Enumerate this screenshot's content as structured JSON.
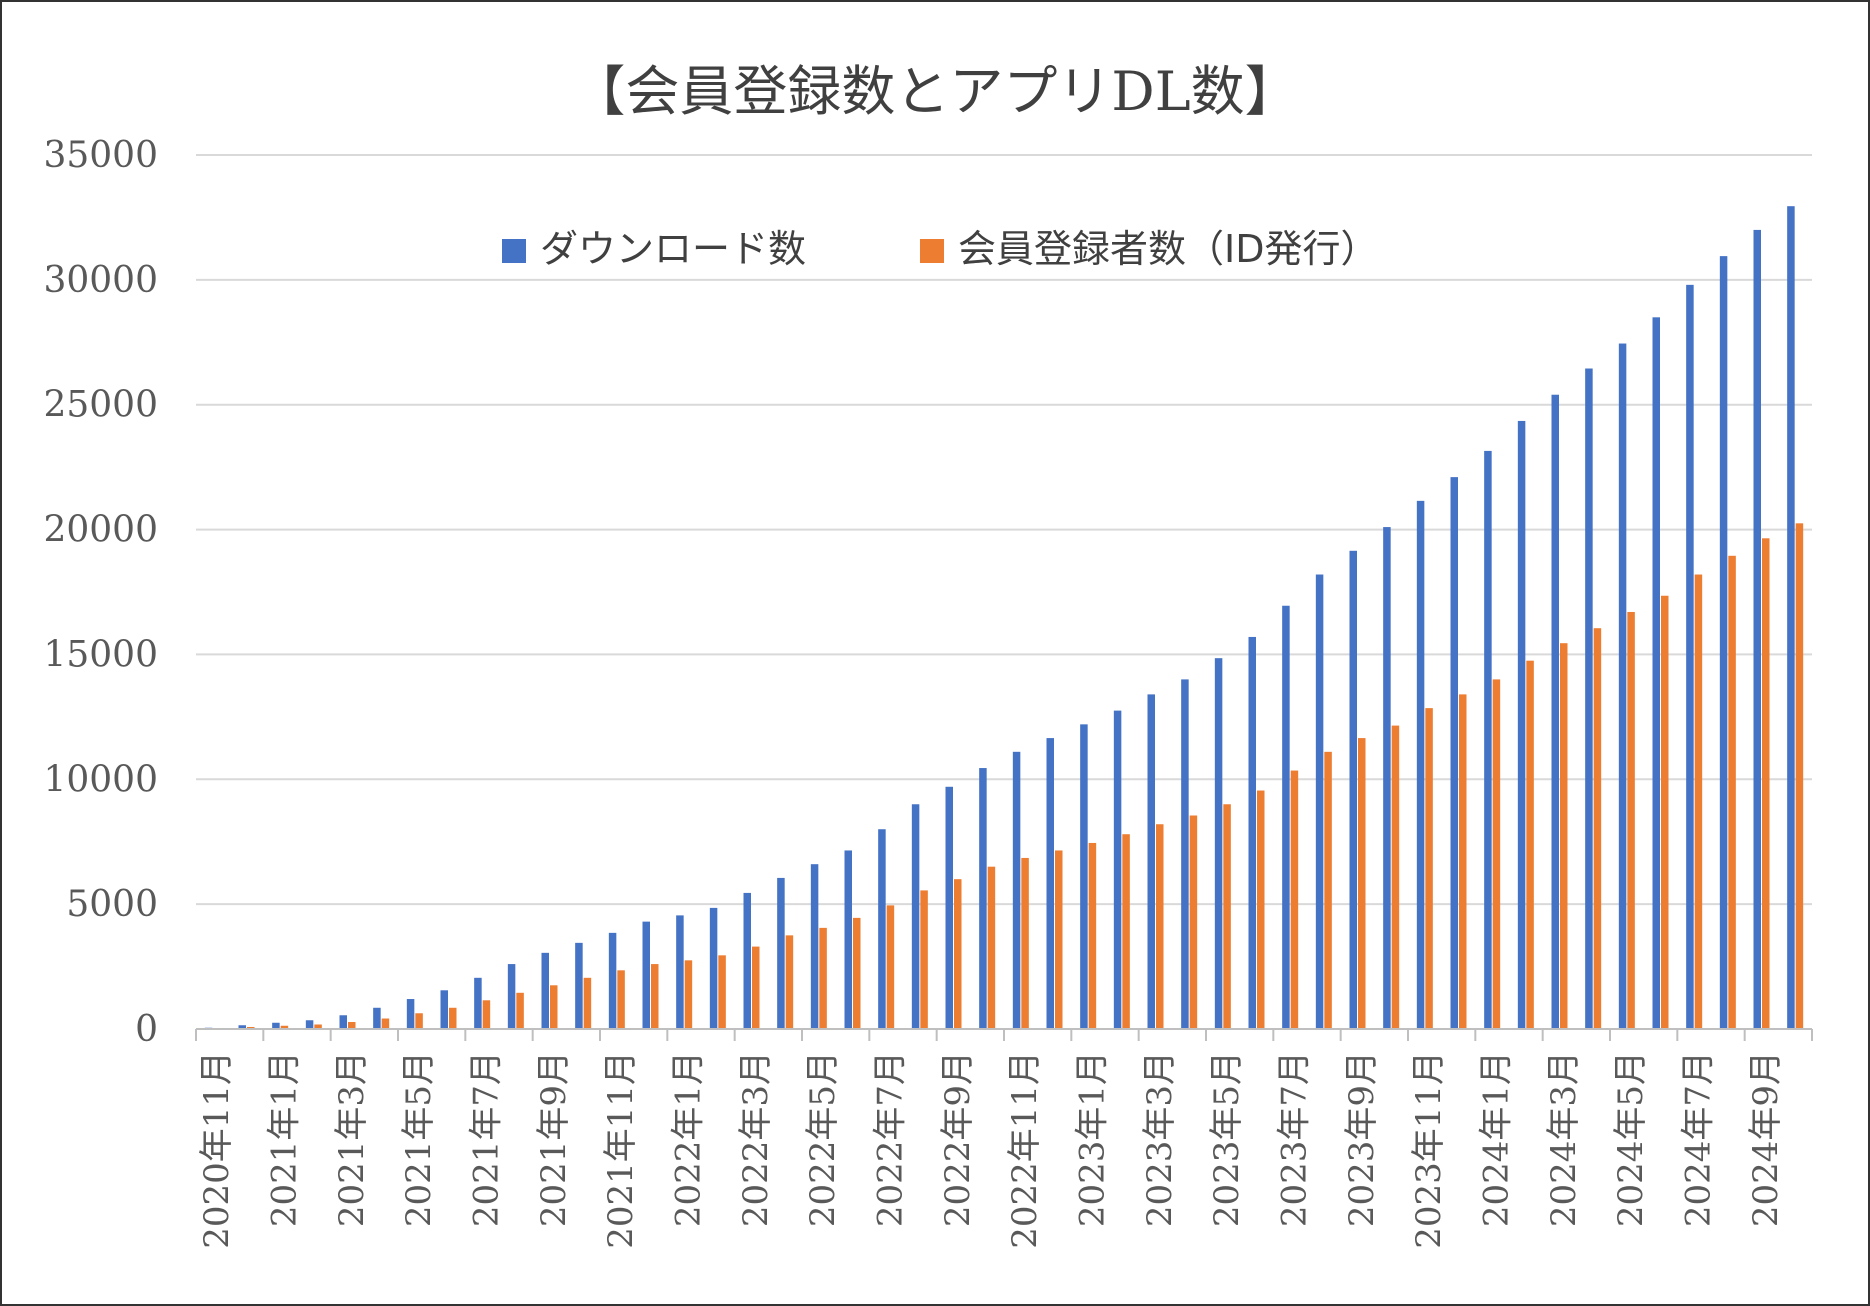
{
  "chart_data": {
    "type": "bar",
    "title": "【会員登録数とアプリDL数】",
    "xlabel": "",
    "ylabel": "",
    "ylim": [
      0,
      35000
    ],
    "yticks": [
      "0",
      "5000",
      "10000",
      "15000",
      "20000",
      "25000",
      "30000",
      "35000"
    ],
    "grid": true,
    "legend_position": "top",
    "categories": [
      "2020年11月",
      "2020年12月",
      "2021年1月",
      "2021年2月",
      "2021年3月",
      "2021年4月",
      "2021年5月",
      "2021年6月",
      "2021年7月",
      "2021年8月",
      "2021年9月",
      "2021年10月",
      "2021年11月",
      "2021年12月",
      "2022年1月",
      "2022年2月",
      "2022年3月",
      "2022年4月",
      "2022年5月",
      "2022年6月",
      "2022年7月",
      "2022年8月",
      "2022年9月",
      "2022年10月",
      "2022年11月",
      "2022年12月",
      "2023年1月",
      "2023年2月",
      "2023年3月",
      "2023年4月",
      "2023年5月",
      "2023年6月",
      "2023年7月",
      "2023年8月",
      "2023年9月",
      "2023年10月",
      "2023年11月",
      "2023年12月",
      "2024年1月",
      "2024年2月",
      "2024年3月",
      "2024年4月",
      "2024年5月",
      "2024年6月",
      "2024年7月",
      "2024年8月",
      "2024年9月",
      "2024年10月"
    ],
    "tick_labels": [
      "2020年11月",
      "",
      "2021年1月",
      "",
      "2021年3月",
      "",
      "2021年5月",
      "",
      "2021年7月",
      "",
      "2021年9月",
      "",
      "2021年11月",
      "",
      "2022年1月",
      "",
      "2022年3月",
      "",
      "2022年5月",
      "",
      "2022年7月",
      "",
      "2022年9月",
      "",
      "2022年11月",
      "",
      "2023年1月",
      "",
      "2023年3月",
      "",
      "2023年5月",
      "",
      "2023年7月",
      "",
      "2023年9月",
      "",
      "2023年11月",
      "",
      "2024年1月",
      "",
      "2024年3月",
      "",
      "2024年5月",
      "",
      "2024年7月",
      "",
      "2024年9月",
      ""
    ],
    "series": [
      {
        "name": "ダウンロード数",
        "color": "#4472C4",
        "values": [
          50,
          150,
          250,
          350,
          550,
          850,
          1200,
          1550,
          2050,
          2600,
          3050,
          3450,
          3850,
          4300,
          4550,
          4850,
          5450,
          6050,
          6600,
          7150,
          8000,
          9000,
          9700,
          10450,
          11100,
          11650,
          12200,
          12750,
          13400,
          14000,
          14850,
          15700,
          16950,
          18200,
          19150,
          20100,
          21150,
          22100,
          23150,
          24350,
          25400,
          26450,
          27450,
          28500,
          29800,
          30950,
          32000,
          32950
        ]
      },
      {
        "name": "会員登録者数（ID発行）",
        "color": "#ED7D31",
        "values": [
          30,
          80,
          130,
          180,
          280,
          420,
          630,
          850,
          1150,
          1450,
          1750,
          2050,
          2350,
          2600,
          2750,
          2950,
          3300,
          3750,
          4050,
          4450,
          4950,
          5550,
          6000,
          6500,
          6850,
          7150,
          7450,
          7800,
          8200,
          8550,
          9000,
          9550,
          10350,
          11100,
          11650,
          12150,
          12850,
          13400,
          14000,
          14750,
          15450,
          16050,
          16700,
          17350,
          18200,
          18950,
          19650,
          20250
        ]
      }
    ]
  }
}
